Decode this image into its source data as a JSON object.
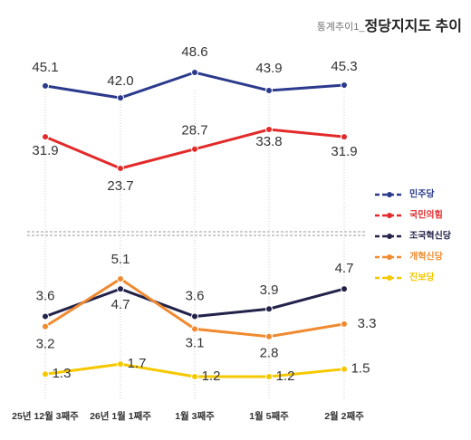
{
  "chart_data": {
    "type": "line",
    "title_prefix": "통계추이1_",
    "title": "정당지지도 추이",
    "categories": [
      "25년 12월 3째주",
      "26년 1월 1째주",
      "1월 3째주",
      "1월 5째주",
      "2월 2째주"
    ],
    "series": [
      {
        "name": "민주당",
        "color": "#2b3a8c",
        "values": [
          45.1,
          42.0,
          48.6,
          43.9,
          45.3
        ],
        "value_labels": [
          "45.1",
          "42.0",
          "48.6",
          "43.9",
          "45.3"
        ]
      },
      {
        "name": "국민의힘",
        "color": "#e32a2a",
        "values": [
          31.9,
          23.7,
          28.7,
          33.8,
          31.9
        ]
      },
      {
        "name": "조국혁신당",
        "color": "#22224a",
        "axis": "y2",
        "values": [
          3.6,
          4.7,
          3.6,
          3.9,
          4.7
        ]
      },
      {
        "name": "개혁신당",
        "color": "#f08a30",
        "axis": "y2",
        "values": [
          3.2,
          5.1,
          3.1,
          2.8,
          3.3
        ]
      },
      {
        "name": "진보당",
        "color": "#f5c800",
        "axis": "y2",
        "values": [
          1.3,
          1.7,
          1.2,
          1.2,
          1.5
        ]
      }
    ]
  }
}
